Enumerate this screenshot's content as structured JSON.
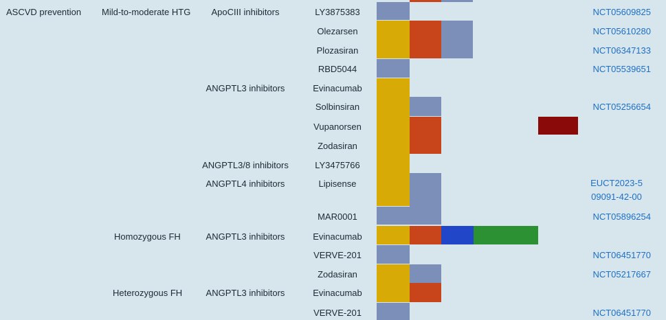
{
  "colors": {
    "background": "#d6e6ec",
    "yellow": "#d8aa06",
    "orange": "#c8441a",
    "slate": "#7b8fb8",
    "blue": "#2246c8",
    "green": "#2c9132",
    "darkred": "#8a0a0a",
    "link": "#1f6fc5"
  },
  "rows": [
    {
      "category": "ASCVD prevention",
      "indication": "Mild-to-moderate HTG",
      "target": "ApoCIII inhibitors",
      "drug": "LY3875383",
      "trial": "NCT05609825"
    },
    {
      "category": "",
      "indication": "",
      "target": "",
      "drug": "Olezarsen",
      "trial": "NCT05610280"
    },
    {
      "category": "",
      "indication": "",
      "target": "",
      "drug": "Plozasiran",
      "trial": "NCT06347133"
    },
    {
      "category": "",
      "indication": "",
      "target": "",
      "drug": "RBD5044",
      "trial": "NCT05539651"
    },
    {
      "category": "",
      "indication": "",
      "target": "ANGPTL3 inhibitors",
      "drug": "Evinacumab",
      "trial": ""
    },
    {
      "category": "",
      "indication": "",
      "target": "",
      "drug": "Solbinsiran",
      "trial": "NCT05256654"
    },
    {
      "category": "",
      "indication": "",
      "target": "",
      "drug": "Vupanorsen",
      "trial": ""
    },
    {
      "category": "",
      "indication": "",
      "target": "",
      "drug": "Zodasiran",
      "trial": ""
    },
    {
      "category": "",
      "indication": "",
      "target": "ANGPTL3/8 inhibitors",
      "drug": "LY3475766",
      "trial": ""
    },
    {
      "category": "",
      "indication": "",
      "target": "ANGPTL4 inhibitors",
      "drug": "Lipisense",
      "trial_line1": "EUCT2023-5",
      "trial_line2": "09091-42-00"
    },
    {
      "category": "",
      "indication": "",
      "target": "",
      "drug": "MAR0001",
      "trial": "NCT05896254"
    },
    {
      "category": "",
      "indication": "Homozygous FH",
      "target": "ANGPTL3 inhibitors",
      "drug": "Evinacumab",
      "trial": ""
    },
    {
      "category": "",
      "indication": "",
      "target": "",
      "drug": "VERVE-201",
      "trial": "NCT06451770"
    },
    {
      "category": "",
      "indication": "",
      "target": "",
      "drug": "Zodasiran",
      "trial": "NCT05217667"
    },
    {
      "category": "",
      "indication": "Heterozygous FH",
      "target": "ANGPTL3 inhibitors",
      "drug": "Evinacumab",
      "trial": ""
    },
    {
      "category": "",
      "indication": "",
      "target": "",
      "drug": "VERVE-201",
      "trial": "NCT06451770"
    }
  ]
}
